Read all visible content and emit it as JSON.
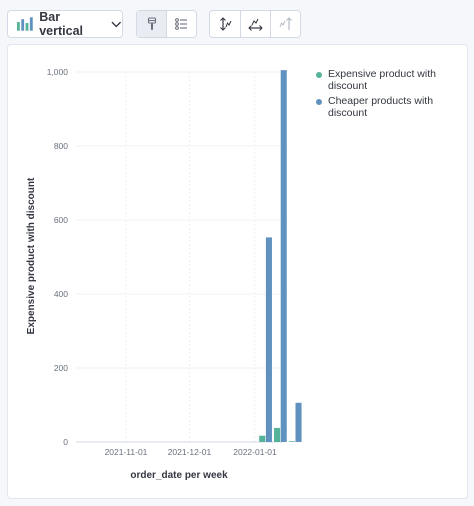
{
  "toolbar": {
    "chart_type_label": "Bar vertical",
    "icons": [
      "bar-chart-icon",
      "chevron-down-icon",
      "paint-brush-icon",
      "list-settings-icon",
      "left-axis-icon",
      "bottom-axis-icon",
      "right-axis-icon"
    ]
  },
  "colors": {
    "expensive": "#54b399",
    "cheaper": "#6092c0",
    "highlight": "#e6e9ef",
    "grid": "#eef0f3",
    "axis_text": "#69707d"
  },
  "legend": {
    "placement": "right",
    "items": [
      {
        "label_line1": "Expensive product with",
        "label_line2": "discount"
      },
      {
        "label_line1": "Cheaper products with",
        "label_line2": "discount"
      }
    ]
  },
  "chart_data": {
    "type": "bar",
    "xlabel": "order_date per week",
    "ylabel": "Expensive product with discount",
    "ylim": [
      0,
      1000
    ],
    "y_ticks": [
      0,
      200,
      400,
      600,
      800,
      1000
    ],
    "y_tick_labels": [
      "0",
      "200",
      "400",
      "600",
      "800",
      "1,000"
    ],
    "x_ticks": [
      "2021-11-01",
      "2021-12-01",
      "2022-01-01"
    ],
    "grid": true,
    "highlighted_category": "2022-01-17",
    "categories": [
      "2022-01-03",
      "2022-01-10",
      "2022-01-17"
    ],
    "series": [
      {
        "name": "Expensive product with discount",
        "values": [
          17,
          38,
          2
        ]
      },
      {
        "name": "Cheaper products with discount",
        "values": [
          553,
          1005,
          106
        ]
      }
    ]
  }
}
